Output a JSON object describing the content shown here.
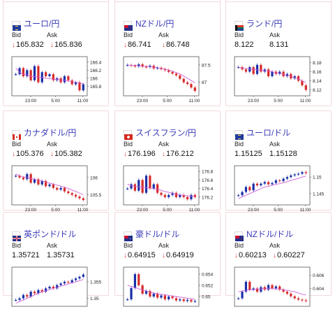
{
  "cards": [
    {
      "pair": "ユーロ/円",
      "flag": "eu",
      "bid_label": "Bid",
      "ask_label": "Ask",
      "bid": "165.832",
      "ask": "165.836",
      "bid_down": true,
      "ask_down": true,
      "chart_data": {
        "type": "candlestick",
        "y_ticks": [
          "166.4",
          "166.2",
          "166",
          "165.8"
        ],
        "x_ticks": [
          "23:00",
          "5:00",
          "11:00"
        ],
        "ylim": [
          165.6,
          166.5
        ],
        "values": [
          166.1,
          166.25,
          166.05,
          166.2,
          165.95,
          166.3,
          165.9,
          166.15,
          166.05,
          166.1,
          165.95,
          166.0,
          165.9,
          166.05,
          165.95,
          165.85,
          165.9,
          165.7,
          165.85
        ],
        "ma": [
          166.25,
          166.15,
          166.1,
          166.08,
          166.05,
          166.04,
          166.03,
          166.02,
          166.0,
          165.99,
          165.98,
          165.97,
          165.96,
          165.95,
          165.93,
          165.92,
          165.9,
          165.88,
          165.86
        ]
      }
    },
    {
      "pair": "NZドル/円",
      "flag": "nz",
      "bid_label": "Bid",
      "ask_label": "Ask",
      "bid": "86.741",
      "ask": "86.748",
      "bid_down": true,
      "ask_down": true,
      "chart_data": {
        "type": "candlestick",
        "y_ticks": [
          "87.5",
          "87"
        ],
        "x_ticks": [
          "23:00",
          "5:00",
          "11:00"
        ],
        "ylim": [
          86.65,
          87.7
        ],
        "values": [
          87.5,
          87.48,
          87.46,
          87.52,
          87.45,
          87.44,
          87.48,
          87.4,
          87.42,
          87.38,
          87.35,
          87.3,
          87.25,
          87.2,
          87.1,
          87.0,
          86.95,
          86.85,
          86.75
        ],
        "ma": [
          87.5,
          87.49,
          87.49,
          87.48,
          87.47,
          87.46,
          87.45,
          87.44,
          87.42,
          87.4,
          87.38,
          87.35,
          87.32,
          87.28,
          87.24,
          87.18,
          87.12,
          87.05,
          86.98
        ]
      }
    },
    {
      "pair": "ランド/円",
      "flag": "za",
      "bid_label": "Bid",
      "ask_label": "Ask",
      "bid": "8.122",
      "ask": "8.131",
      "bid_down": false,
      "ask_down": false,
      "chart_data": {
        "type": "candlestick",
        "y_ticks": [
          "8.18",
          "8.16",
          "8.14",
          "8.12"
        ],
        "x_ticks": [
          "23:00",
          "5:00",
          "11:00"
        ],
        "ylim": [
          8.11,
          8.19
        ],
        "values": [
          8.17,
          8.165,
          8.16,
          8.17,
          8.155,
          8.175,
          8.16,
          8.165,
          8.15,
          8.16,
          8.155,
          8.16,
          8.15,
          8.155,
          8.145,
          8.15,
          8.14,
          8.13,
          8.12
        ],
        "ma": [
          8.17,
          8.168,
          8.167,
          8.166,
          8.165,
          8.164,
          8.163,
          8.162,
          8.161,
          8.16,
          8.158,
          8.156,
          8.154,
          8.152,
          8.15,
          8.147,
          8.144,
          8.14,
          8.136
        ]
      }
    },
    {
      "pair": "カナダドル/円",
      "flag": "ca",
      "bid_label": "Bid",
      "ask_label": "Ask",
      "bid": "105.376",
      "ask": "105.382",
      "bid_down": true,
      "ask_down": true,
      "chart_data": {
        "type": "candlestick",
        "y_ticks": [
          "106",
          "105.5"
        ],
        "x_ticks": [
          "23:00",
          "5:00",
          "11:00"
        ],
        "ylim": [
          105.25,
          106.3
        ],
        "values": [
          106.05,
          106.0,
          105.95,
          106.1,
          105.85,
          105.95,
          105.8,
          105.9,
          105.75,
          105.8,
          105.7,
          105.65,
          105.7,
          105.6,
          105.55,
          105.5,
          105.45,
          105.4,
          105.35
        ],
        "ma": [
          106.1,
          106.05,
          106.02,
          106.0,
          105.97,
          105.95,
          105.92,
          105.9,
          105.87,
          105.84,
          105.81,
          105.78,
          105.75,
          105.72,
          105.68,
          105.64,
          105.6,
          105.55,
          105.5
        ]
      }
    },
    {
      "pair": "スイスフラン/円",
      "flag": "ch",
      "bid_label": "Bid",
      "ask_label": "Ask",
      "bid": "176.196",
      "ask": "176.212",
      "bid_down": true,
      "ask_down": true,
      "chart_data": {
        "type": "candlestick",
        "y_ticks": [
          "176.8",
          "176.6",
          "176.4",
          "176.2"
        ],
        "x_ticks": [
          "23:00",
          "5:00",
          "11:00"
        ],
        "ylim": [
          176.05,
          176.9
        ],
        "values": [
          176.4,
          176.5,
          176.35,
          176.6,
          176.3,
          176.7,
          176.4,
          176.5,
          176.3,
          176.25,
          176.2,
          176.25,
          176.3,
          176.2,
          176.25,
          176.2,
          176.15,
          176.25,
          176.2
        ],
        "ma": [
          176.5,
          176.47,
          176.45,
          176.44,
          176.43,
          176.42,
          176.41,
          176.4,
          176.38,
          176.36,
          176.33,
          176.31,
          176.29,
          176.27,
          176.25,
          176.24,
          176.23,
          176.22,
          176.21
        ]
      }
    },
    {
      "pair": "ユーロ/ドル",
      "flag": "eu",
      "bid_label": "Bid",
      "ask_label": "Ask",
      "bid": "1.15125",
      "ask": "1.15128",
      "bid_down": false,
      "ask_down": false,
      "chart_data": {
        "type": "candlestick",
        "y_ticks": [
          "1.15",
          "1.145"
        ],
        "x_ticks": [
          "23:00",
          "5:00",
          "11:00"
        ],
        "ylim": [
          1.142,
          1.153
        ],
        "values": [
          1.1445,
          1.1455,
          1.147,
          1.146,
          1.148,
          1.1475,
          1.148,
          1.1485,
          1.1478,
          1.1482,
          1.149,
          1.1488,
          1.1495,
          1.15,
          1.1505,
          1.1508,
          1.151,
          1.1515,
          1.1512
        ],
        "ma": [
          1.1435,
          1.144,
          1.1445,
          1.145,
          1.1455,
          1.146,
          1.1465,
          1.147,
          1.1472,
          1.1475,
          1.1478,
          1.148,
          1.1483,
          1.1486,
          1.149,
          1.1493,
          1.1496,
          1.15,
          1.1503
        ]
      }
    },
    {
      "pair": "英ポンド/ドル",
      "flag": "gb",
      "bid_label": "Bid",
      "ask_label": "Ask",
      "bid": "1.35721",
      "ask": "1.35731",
      "bid_down": false,
      "ask_down": false,
      "chart_data": {
        "type": "candlestick",
        "y_ticks": [
          "1.355",
          "1.35"
        ],
        "x_ticks": [],
        "ylim": [
          1.348,
          1.359
        ],
        "values": [
          1.3495,
          1.35,
          1.351,
          1.3505,
          1.352,
          1.3515,
          1.3525,
          1.352,
          1.353,
          1.3535,
          1.353,
          1.354,
          1.3545,
          1.355,
          1.3548,
          1.3555,
          1.356,
          1.3565,
          1.3572
        ],
        "ma": [
          1.3485,
          1.349,
          1.3495,
          1.35,
          1.3505,
          1.351,
          1.3515,
          1.352,
          1.3523,
          1.3526,
          1.353,
          1.3533,
          1.3537,
          1.354,
          1.3543,
          1.3547,
          1.355,
          1.3553,
          1.3557
        ]
      }
    },
    {
      "pair": "豪ドル/ドル",
      "flag": "au",
      "bid_label": "Bid",
      "ask_label": "Ask",
      "bid": "0.64915",
      "ask": "0.64919",
      "bid_down": true,
      "ask_down": true,
      "chart_data": {
        "type": "candlestick",
        "y_ticks": [
          "0.654",
          "0.652",
          "0.65"
        ],
        "x_ticks": [],
        "ylim": [
          0.6485,
          0.655
        ],
        "values": [
          0.6495,
          0.6515,
          0.654,
          0.652,
          0.6505,
          0.651,
          0.65,
          0.6505,
          0.6498,
          0.6502,
          0.6495,
          0.65,
          0.6497,
          0.6493,
          0.6495,
          0.6492,
          0.6494,
          0.6491,
          0.6492
        ],
        "ma": [
          0.652,
          0.6518,
          0.6516,
          0.6514,
          0.6512,
          0.651,
          0.6508,
          0.6506,
          0.6505,
          0.6504,
          0.6503,
          0.6502,
          0.6501,
          0.65,
          0.6499,
          0.6498,
          0.6497,
          0.6496,
          0.6495
        ]
      }
    },
    {
      "pair": "NZドル/ドル",
      "flag": "nz",
      "bid_label": "Bid",
      "ask_label": "Ask",
      "bid": "0.60213",
      "ask": "0.60227",
      "bid_down": true,
      "ask_down": true,
      "chart_data": {
        "type": "candlestick",
        "y_ticks": [
          "0.606",
          "0.604"
        ],
        "x_ticks": [],
        "ylim": [
          0.6015,
          0.607
        ],
        "values": [
          0.6025,
          0.6035,
          0.605,
          0.6038,
          0.604,
          0.6035,
          0.6042,
          0.6038,
          0.6045,
          0.604,
          0.6043,
          0.6038,
          0.6035,
          0.6032,
          0.6028,
          0.6025,
          0.6023,
          0.6022,
          0.6021
        ],
        "ma": [
          0.6035,
          0.6036,
          0.6037,
          0.6038,
          0.6038,
          0.6039,
          0.6039,
          0.604,
          0.604,
          0.604,
          0.6039,
          0.6039,
          0.6038,
          0.6037,
          0.6036,
          0.6035,
          0.6033,
          0.6031,
          0.603
        ]
      }
    }
  ],
  "colors": {
    "up": "#1a2fa8",
    "down": "#d72a2a",
    "ma": "#d060d8",
    "pair": "#3a3ab8",
    "arrow": "#e03a3a",
    "border": "#f2d9dc"
  }
}
